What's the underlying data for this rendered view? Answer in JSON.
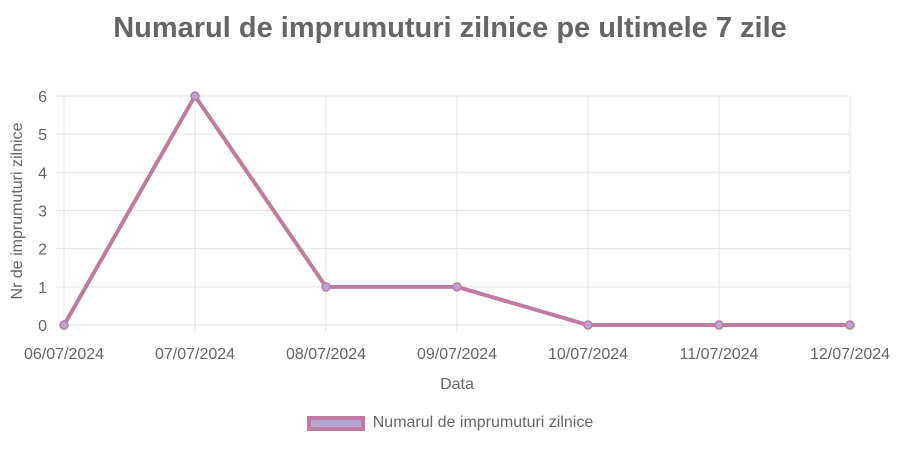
{
  "chart_data": {
    "type": "line",
    "title": "Numarul de imprumuturi zilnice pe ultimele 7 zile",
    "xlabel": "Data",
    "ylabel": "Nr de imprumuturi zilnice",
    "categories": [
      "06/07/2024",
      "07/07/2024",
      "08/07/2024",
      "09/07/2024",
      "10/07/2024",
      "11/07/2024",
      "12/07/2024"
    ],
    "series": [
      {
        "name": "Numarul de imprumuturi zilnice",
        "values": [
          0,
          6,
          1,
          1,
          0,
          0,
          0
        ]
      }
    ],
    "ylim": [
      0,
      6
    ],
    "yticks": [
      0,
      1,
      2,
      3,
      4,
      5,
      6
    ],
    "grid": true,
    "legend_position": "bottom",
    "colors": {
      "line": "#c27ba0",
      "point_fill": "#b4a7d6",
      "grid": "#e5e5e5",
      "text": "#666666"
    }
  }
}
